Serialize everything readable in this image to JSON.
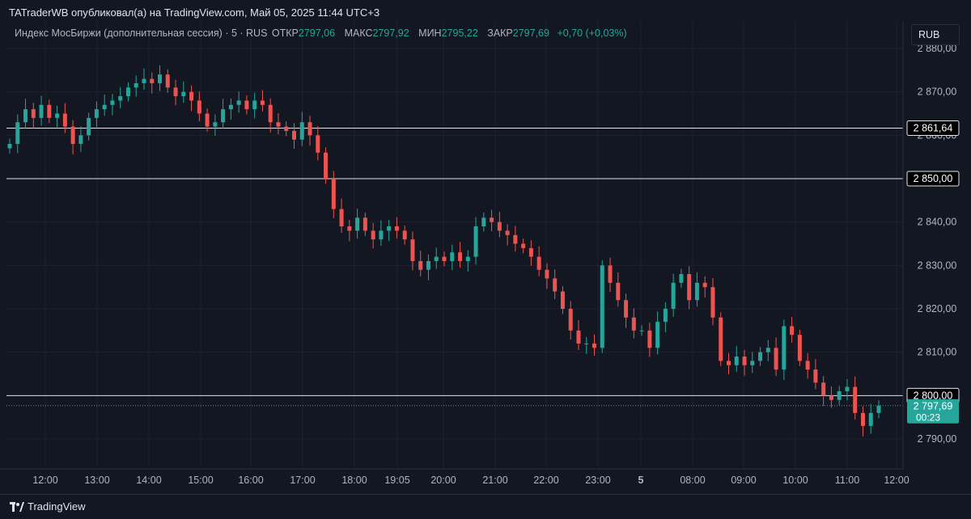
{
  "header": {
    "published": "TATraderWB опубликовал(а) на TradingView.com, Май 05, 2025 11:44 UTC+3"
  },
  "legend": {
    "symbol": "Индекс МосБиржи (дополнительная сессия) · 5 · RUS",
    "open_label": "ОТКР",
    "open": "2797,06",
    "high_label": "МАКС",
    "high": "2797,92",
    "low_label": "МИН",
    "low": "2795,22",
    "close_label": "ЗАКР",
    "close": "2797,69",
    "change": "+0,70 (+0,03%)"
  },
  "currency_button": "RUB",
  "footer": {
    "brand": "TradingView"
  },
  "colors": {
    "up": "#26a69a",
    "down": "#ef5350",
    "bg": "#131722",
    "grid": "#1e222d",
    "hline": "#e0e3eb",
    "price_tag": "#26a69a"
  },
  "chart_data": {
    "type": "candlestick",
    "y_axis_ticks": [
      "2 880,00",
      "2 870,00",
      "2 860,00",
      "2 850,00",
      "2 840,00",
      "2 830,00",
      "2 820,00",
      "2 810,00",
      "2 800,00",
      "2 790,00"
    ],
    "ylim": [
      2786,
      2882
    ],
    "x_axis_ticks": [
      "12:00",
      "13:00",
      "14:00",
      "15:00",
      "16:00",
      "17:00",
      "18:00",
      "19:05",
      "20:00",
      "21:00",
      "22:00",
      "23:00",
      "5",
      "08:00",
      "09:00",
      "10:00",
      "11:00",
      "12:00"
    ],
    "horizontal_lines": [
      {
        "value": 2861.64,
        "label": "2 861,64"
      },
      {
        "value": 2850.0,
        "label": "2 850,00"
      },
      {
        "value": 2800.0,
        "label": "2 800,00"
      }
    ],
    "last_price": {
      "value": 2797.69,
      "label": "2 797,69",
      "countdown": "00:23"
    },
    "close_path": [
      2858,
      2863,
      2866,
      2864,
      2867,
      2864,
      2865,
      2862,
      2858,
      2860,
      2864,
      2866,
      2867,
      2868,
      2869,
      2871,
      2872,
      2873,
      2872,
      2874,
      2871,
      2869,
      2870,
      2868,
      2865,
      2862,
      2863,
      2866,
      2867,
      2868,
      2866,
      2868,
      2867,
      2863,
      2862,
      2861,
      2859,
      2863,
      2860,
      2856,
      2850,
      2843,
      2839,
      2838,
      2841,
      2838,
      2836,
      2838,
      2839,
      2838,
      2836,
      2831,
      2829,
      2831,
      2832,
      2831,
      2833,
      2831,
      2832,
      2839,
      2841,
      2840,
      2838,
      2837,
      2835,
      2834,
      2832,
      2829,
      2827,
      2824,
      2820,
      2815,
      2812,
      2812,
      2811,
      2830,
      2826,
      2822,
      2818,
      2815,
      2815,
      2811,
      2817,
      2820,
      2826,
      2828,
      2822,
      2826,
      2825,
      2818,
      2808,
      2807,
      2809,
      2807,
      2808,
      2810,
      2811,
      2806,
      2816,
      2814,
      2808,
      2806,
      2803,
      2800,
      2799,
      2801,
      2802,
      2796,
      2793,
      2796,
      2797.69
    ]
  }
}
